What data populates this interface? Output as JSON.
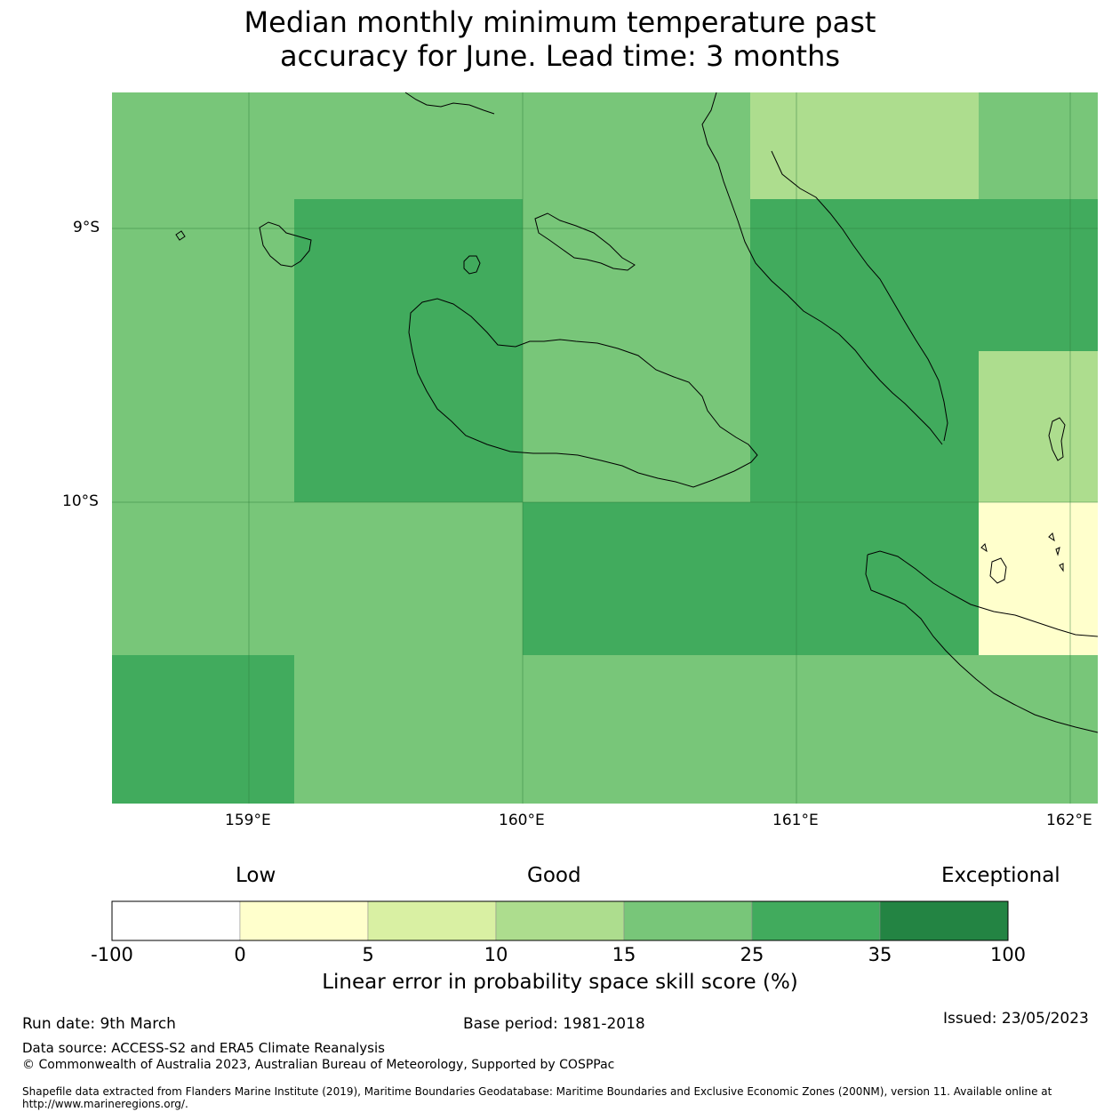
{
  "title_line1": "Median monthly minimum temperature past",
  "title_line2": "accuracy for June. Lead time: 3 months",
  "map": {
    "lat_labels": [
      "9°S",
      "10°S"
    ],
    "lon_labels": [
      "159°E",
      "160°E",
      "161°E",
      "162°E"
    ],
    "cells": [
      {
        "lon": [
          158.5,
          159.17
        ],
        "lat": [
          -8.5,
          -10.56
        ],
        "score_band": "15-25"
      },
      {
        "lon": [
          159.17,
          160.0
        ],
        "lat": [
          -8.5,
          -8.89
        ],
        "score_band": "15-25"
      },
      {
        "lon": [
          160.0,
          160.83
        ],
        "lat": [
          -8.5,
          -9.0
        ],
        "score_band": "15-25"
      },
      {
        "lon": [
          160.83,
          161.67
        ],
        "lat": [
          -8.5,
          -8.89
        ],
        "score_band": "10-15"
      },
      {
        "lon": [
          161.67,
          162.1
        ],
        "lat": [
          -8.5,
          -8.89
        ],
        "score_band": "15-25"
      },
      {
        "lon": [
          159.17,
          160.0
        ],
        "lat": [
          -8.89,
          -10.0
        ],
        "score_band": "25-35"
      },
      {
        "lon": [
          160.0,
          160.83
        ],
        "lat": [
          -8.89,
          -10.0
        ],
        "score_band": "15-25"
      },
      {
        "lon": [
          160.83,
          161.67
        ],
        "lat": [
          -8.89,
          -10.0
        ],
        "score_band": "25-35"
      },
      {
        "lon": [
          161.67,
          162.1
        ],
        "lat": [
          -8.89,
          -9.44
        ],
        "score_band": "25-35"
      },
      {
        "lon": [
          161.67,
          162.1
        ],
        "lat": [
          -9.44,
          -10.0
        ],
        "score_band": "10-15"
      },
      {
        "lon": [
          159.17,
          160.0
        ],
        "lat": [
          -10.0,
          -11.1
        ],
        "score_band": "15-25"
      },
      {
        "lon": [
          160.0,
          161.67
        ],
        "lat": [
          -10.0,
          -10.56
        ],
        "score_band": "25-35"
      },
      {
        "lon": [
          161.67,
          162.1
        ],
        "lat": [
          -10.0,
          -10.56
        ],
        "score_band": "0-5"
      },
      {
        "lon": [
          158.5,
          159.17
        ],
        "lat": [
          -10.56,
          -11.1
        ],
        "score_band": "25-35"
      },
      {
        "lon": [
          159.17,
          162.1
        ],
        "lat": [
          -10.56,
          -11.1
        ],
        "score_band": "15-25"
      }
    ]
  },
  "colorbar": {
    "categories": [
      "Low",
      "Good",
      "Exceptional"
    ],
    "ticks": [
      "-100",
      "0",
      "5",
      "10",
      "15",
      "25",
      "35",
      "100"
    ],
    "colors": [
      "#ffffff",
      "#ffffcc",
      "#d9f0a3",
      "#addd8e",
      "#78c679",
      "#41ab5d",
      "#238443"
    ],
    "label": "Linear error in probability space skill score (%)"
  },
  "footer": {
    "run_date": "Run date: 9th March",
    "base_period": "Base period: 1981-2018",
    "issued": "Issued: 23/05/2023",
    "data_source": "Data source: ACCESS-S2 and ERA5 Climate Reanalysis",
    "copyright": "© Commonwealth of Australia 2023, Australian Bureau of Meteorology, Supported by COSPPac",
    "shapefile": "Shapefile data extracted from Flanders Marine Institute (2019), Maritime Boundaries Geodatabase: Maritime Boundaries and Exclusive Economic Zones (200NM), version 11. Available online at http://www.marineregions.org/."
  }
}
